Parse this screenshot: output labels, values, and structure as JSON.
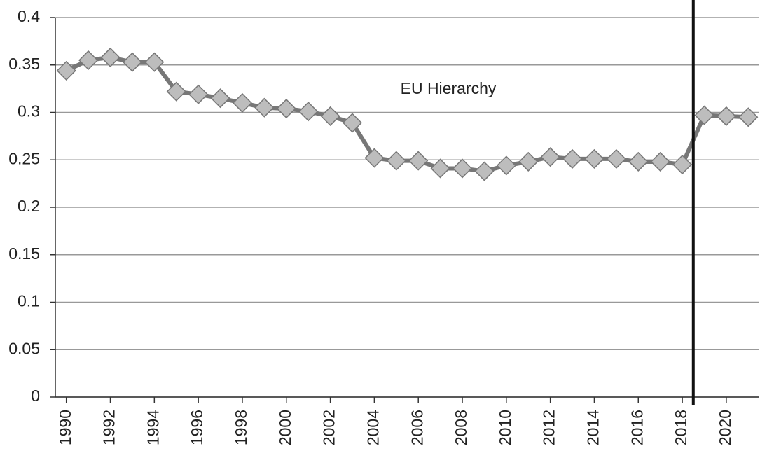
{
  "chart_data": {
    "type": "line",
    "x": [
      1990,
      1991,
      1992,
      1993,
      1994,
      1995,
      1996,
      1997,
      1998,
      1999,
      2000,
      2001,
      2002,
      2003,
      2004,
      2005,
      2006,
      2007,
      2008,
      2009,
      2010,
      2011,
      2012,
      2013,
      2014,
      2015,
      2016,
      2017,
      2018,
      2019,
      2020,
      2021
    ],
    "series": [
      {
        "name": "EU Hierarchy",
        "color": "#777777",
        "marker_color": "#bdbdbd",
        "values": [
          0.344,
          0.355,
          0.358,
          0.353,
          0.353,
          0.322,
          0.319,
          0.315,
          0.31,
          0.305,
          0.304,
          0.301,
          0.296,
          0.289,
          0.252,
          0.249,
          0.249,
          0.241,
          0.241,
          0.238,
          0.244,
          0.248,
          0.253,
          0.251,
          0.251,
          0.251,
          0.248,
          0.248,
          0.245,
          0.297,
          0.296,
          0.295
        ]
      }
    ],
    "xlim": [
      1989.5,
      2021.5
    ],
    "xticks": [
      1990,
      1992,
      1994,
      1996,
      1998,
      2000,
      2002,
      2004,
      2006,
      2008,
      2010,
      2012,
      2014,
      2016,
      2018,
      2020
    ],
    "ylim": [
      0,
      0.4
    ],
    "yticks": [
      0,
      0.05,
      0.1,
      0.15,
      0.2,
      0.25,
      0.3,
      0.35,
      0.4
    ],
    "grid": true,
    "vline_x": 2018.5
  }
}
